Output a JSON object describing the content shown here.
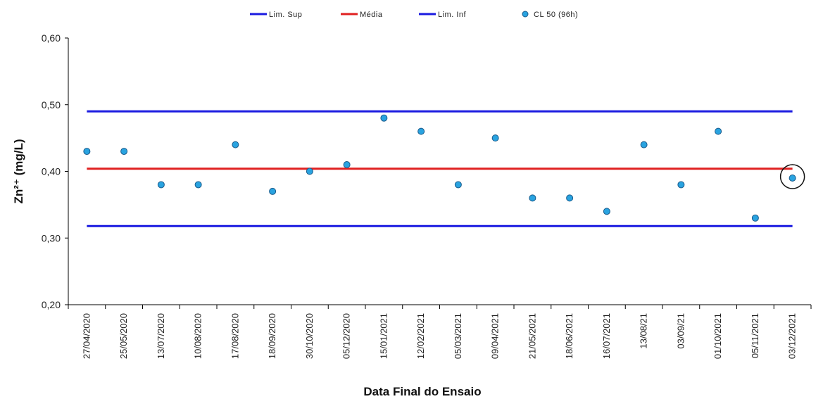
{
  "chart_data": {
    "type": "scatter",
    "title": "",
    "xlabel": "Data Final do Ensaio",
    "ylabel": "Zn²⁺ (mg/L)",
    "ylim": [
      0.2,
      0.6
    ],
    "yticks": [
      "0,20",
      "0,30",
      "0,40",
      "0,50",
      "0,60"
    ],
    "grid": false,
    "legend_position": "top",
    "categories": [
      "27/04/2020",
      "25/05/2020",
      "13/07/2020",
      "10/08/2020",
      "17/08/2020",
      "18/09/2020",
      "30/10/2020",
      "05/12/2020",
      "15/01/2021",
      "12/02/2021",
      "05/03/2021",
      "09/04/2021",
      "21/05/2021",
      "18/06/2021",
      "16/07/2021",
      "13/08/21",
      "03/09/21",
      "01/10/2021",
      "05/11/2021",
      "03/12/2021"
    ],
    "series": [
      {
        "name": "Lim. Sup",
        "kind": "line",
        "color": "#1a1ae0",
        "value": 0.49
      },
      {
        "name": "Média",
        "kind": "line",
        "color": "#e02020",
        "value": 0.404
      },
      {
        "name": "Lim. Inf",
        "kind": "line",
        "color": "#1a1ae0",
        "value": 0.318
      },
      {
        "name": "CL 50 (96h)",
        "kind": "scatter",
        "color": "#29a3e0",
        "values": [
          0.43,
          0.43,
          0.38,
          0.38,
          0.44,
          0.37,
          0.4,
          0.41,
          0.48,
          0.46,
          0.38,
          0.45,
          0.36,
          0.36,
          0.34,
          0.44,
          0.38,
          0.46,
          0.33,
          0.39
        ]
      }
    ],
    "highlighted_category": "03/12/2021"
  }
}
